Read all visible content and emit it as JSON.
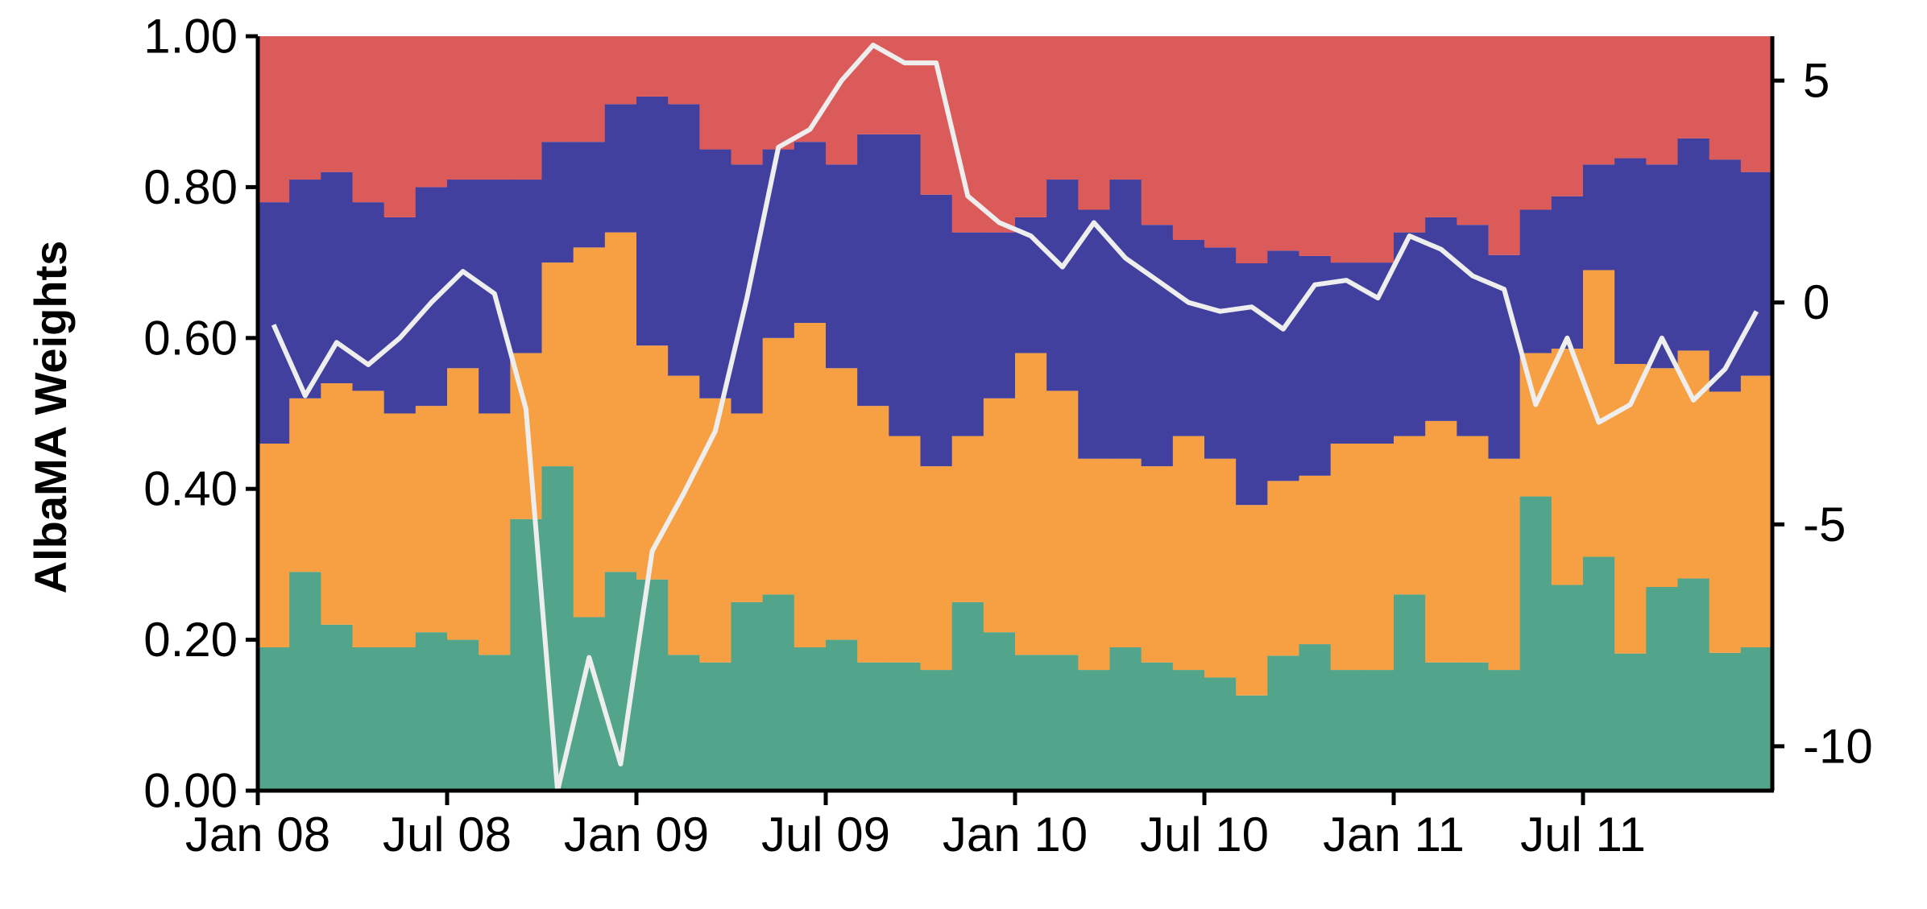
{
  "chart_data": {
    "type": "area",
    "ylabel": "AlbaMA Weights",
    "y2label": "",
    "x_ticks": [
      "Jan 08",
      "Jul 08",
      "Jan 09",
      "Jul 09",
      "Jan 10",
      "Jul 10",
      "Jan 11",
      "Jul 11"
    ],
    "x_months": [
      "2008-01",
      "2008-02",
      "2008-03",
      "2008-04",
      "2008-05",
      "2008-06",
      "2008-07",
      "2008-08",
      "2008-09",
      "2008-10",
      "2008-11",
      "2008-12",
      "2009-01",
      "2009-02",
      "2009-03",
      "2009-04",
      "2009-05",
      "2009-06",
      "2009-07",
      "2009-08",
      "2009-09",
      "2009-10",
      "2009-11",
      "2009-12",
      "2010-01",
      "2010-02",
      "2010-03",
      "2010-04",
      "2010-05",
      "2010-06",
      "2010-07",
      "2010-08",
      "2010-09",
      "2010-10",
      "2010-11",
      "2010-12",
      "2011-01",
      "2011-02",
      "2011-03",
      "2011-04",
      "2011-05",
      "2011-06",
      "2011-07",
      "2011-08",
      "2011-09",
      "2011-10",
      "2011-11",
      "2011-12"
    ],
    "ylim": [
      0,
      1
    ],
    "y_ticks": [
      "0.00",
      "0.20",
      "0.40",
      "0.60",
      "0.80",
      "1.00"
    ],
    "y2lim": [
      -11,
      6
    ],
    "y2_ticks": [
      "5",
      "0",
      "-5",
      "-10"
    ],
    "stacked_series": [
      {
        "color": "#52a58a",
        "values": [
          0.19,
          0.29,
          0.22,
          0.19,
          0.19,
          0.21,
          0.2,
          0.18,
          0.36,
          0.43,
          0.23,
          0.29,
          0.28,
          0.18,
          0.17,
          0.25,
          0.26,
          0.19,
          0.2,
          0.17,
          0.17,
          0.16,
          0.25,
          0.21,
          0.18,
          0.18,
          0.16,
          0.19,
          0.17,
          0.16,
          0.15,
          0.13,
          0.17,
          0.2,
          0.16,
          0.16,
          0.26,
          0.17,
          0.17,
          0.16,
          0.39,
          0.27,
          0.31,
          0.18,
          0.27,
          0.27,
          0.19,
          0.19
        ]
      },
      {
        "color": "#f7a043",
        "values": [
          0.27,
          0.23,
          0.32,
          0.34,
          0.31,
          0.3,
          0.36,
          0.32,
          0.22,
          0.27,
          0.49,
          0.45,
          0.31,
          0.37,
          0.35,
          0.25,
          0.34,
          0.43,
          0.36,
          0.34,
          0.3,
          0.27,
          0.22,
          0.31,
          0.4,
          0.35,
          0.28,
          0.25,
          0.26,
          0.31,
          0.29,
          0.26,
          0.22,
          0.23,
          0.3,
          0.3,
          0.21,
          0.32,
          0.3,
          0.28,
          0.19,
          0.31,
          0.38,
          0.38,
          0.29,
          0.29,
          0.36,
          0.36
        ]
      },
      {
        "color": "#41409e",
        "values": [
          0.32,
          0.29,
          0.28,
          0.25,
          0.26,
          0.29,
          0.25,
          0.31,
          0.23,
          0.16,
          0.14,
          0.17,
          0.33,
          0.36,
          0.33,
          0.33,
          0.25,
          0.24,
          0.27,
          0.36,
          0.4,
          0.36,
          0.27,
          0.22,
          0.18,
          0.28,
          0.33,
          0.37,
          0.32,
          0.26,
          0.28,
          0.33,
          0.29,
          0.3,
          0.24,
          0.24,
          0.27,
          0.27,
          0.28,
          0.27,
          0.19,
          0.2,
          0.14,
          0.27,
          0.27,
          0.27,
          0.32,
          0.27
        ]
      },
      {
        "color": "#db5b5b",
        "values": [
          0.22,
          0.19,
          0.18,
          0.22,
          0.24,
          0.2,
          0.19,
          0.19,
          0.19,
          0.14,
          0.14,
          0.09,
          0.08,
          0.09,
          0.15,
          0.17,
          0.15,
          0.14,
          0.17,
          0.13,
          0.13,
          0.21,
          0.26,
          0.26,
          0.24,
          0.19,
          0.23,
          0.19,
          0.25,
          0.27,
          0.28,
          0.31,
          0.27,
          0.3,
          0.3,
          0.3,
          0.26,
          0.24,
          0.25,
          0.29,
          0.23,
          0.21,
          0.17,
          0.16,
          0.17,
          0.13,
          0.17,
          0.18
        ]
      }
    ],
    "line_series": {
      "color": "#eeeeee",
      "axis": "right",
      "values": [
        -0.5,
        -2.1,
        -0.9,
        -1.4,
        -0.8,
        0.0,
        0.7,
        0.2,
        -2.4,
        -11.0,
        -8.0,
        -10.4,
        -5.6,
        -4.3,
        -2.9,
        0.1,
        3.5,
        3.9,
        5.0,
        5.8,
        5.4,
        5.4,
        2.4,
        1.8,
        1.5,
        0.8,
        1.8,
        1.0,
        0.5,
        0.0,
        -0.2,
        -0.1,
        -0.6,
        0.4,
        0.5,
        0.1,
        1.5,
        1.2,
        0.6,
        0.3,
        -2.3,
        -0.8,
        -2.7,
        -2.3,
        -0.8,
        -2.2,
        -1.5,
        -0.2
      ]
    }
  }
}
